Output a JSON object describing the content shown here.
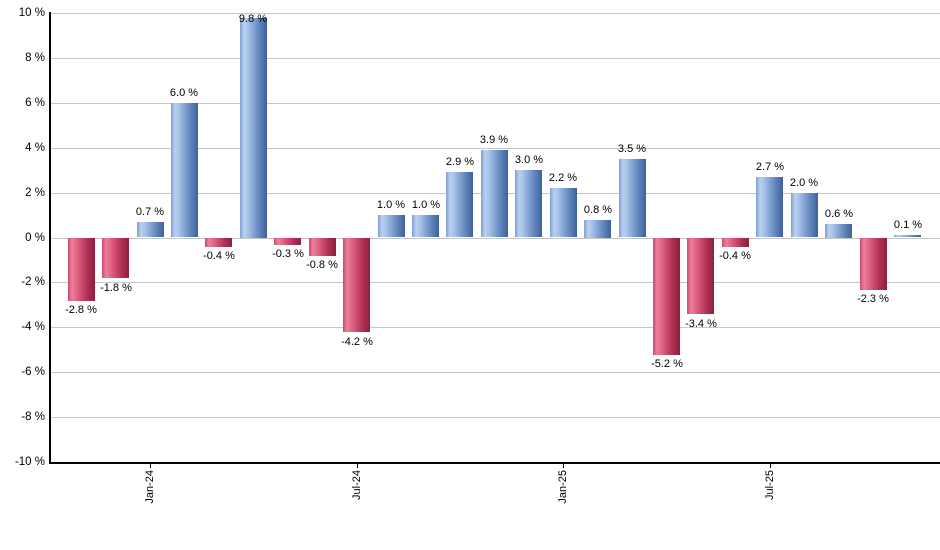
{
  "chart_data": {
    "type": "bar",
    "title": "",
    "xlabel": "",
    "ylabel": "",
    "ylim": [
      -10,
      10
    ],
    "grid": true,
    "legend": "none",
    "y_ticks": [
      {
        "value": 10,
        "label": "10 %"
      },
      {
        "value": 8,
        "label": "8 %"
      },
      {
        "value": 6,
        "label": "6 %"
      },
      {
        "value": 4,
        "label": "4 %"
      },
      {
        "value": 2,
        "label": "2 %"
      },
      {
        "value": 0,
        "label": "0 %"
      },
      {
        "value": -2,
        "label": "-2 %"
      },
      {
        "value": -4,
        "label": "-4 %"
      },
      {
        "value": -6,
        "label": "-6 %"
      },
      {
        "value": -8,
        "label": "-8 %"
      },
      {
        "value": -10,
        "label": "-10 %"
      }
    ],
    "x_ticks": [
      {
        "bar_index": 2,
        "label": "Jan-24"
      },
      {
        "bar_index": 8,
        "label": "Jul-24"
      },
      {
        "bar_index": 14,
        "label": "Jan-25"
      },
      {
        "bar_index": 20,
        "label": "Jul-25"
      }
    ],
    "bars": [
      {
        "value": -2.8,
        "label": "-2.8 %"
      },
      {
        "value": -1.8,
        "label": "-1.8 %"
      },
      {
        "value": 0.7,
        "label": "0.7 %"
      },
      {
        "value": 6.0,
        "label": "6.0 %"
      },
      {
        "value": -0.4,
        "label": "-0.4 %"
      },
      {
        "value": 9.8,
        "label": "9.8 %"
      },
      {
        "value": -0.3,
        "label": "-0.3 %"
      },
      {
        "value": -0.8,
        "label": "-0.8 %"
      },
      {
        "value": -4.2,
        "label": "-4.2 %"
      },
      {
        "value": 1.0,
        "label": "1.0 %"
      },
      {
        "value": 1.0,
        "label": "1.0 %"
      },
      {
        "value": 2.9,
        "label": "2.9 %"
      },
      {
        "value": 3.9,
        "label": "3.9 %"
      },
      {
        "value": 3.0,
        "label": "3.0 %"
      },
      {
        "value": 2.2,
        "label": "2.2 %"
      },
      {
        "value": 0.8,
        "label": "0.8 %"
      },
      {
        "value": 3.5,
        "label": "3.5 %"
      },
      {
        "value": -5.2,
        "label": "-5.2 %"
      },
      {
        "value": -3.4,
        "label": "-3.4 %"
      },
      {
        "value": -0.4,
        "label": "-0.4 %"
      },
      {
        "value": 2.7,
        "label": "2.7 %"
      },
      {
        "value": 2.0,
        "label": "2.0 %"
      },
      {
        "value": 0.6,
        "label": "0.6 %"
      },
      {
        "value": -2.3,
        "label": "-2.3 %"
      },
      {
        "value": 0.1,
        "label": "0.1 %"
      }
    ],
    "colors": {
      "positive_bar": "#6f93c5",
      "negative_bar": "#c5436a",
      "gridline": "#c6c6c6",
      "axis": "#000000",
      "label_text": "#000000",
      "background": "#ffffff"
    }
  }
}
